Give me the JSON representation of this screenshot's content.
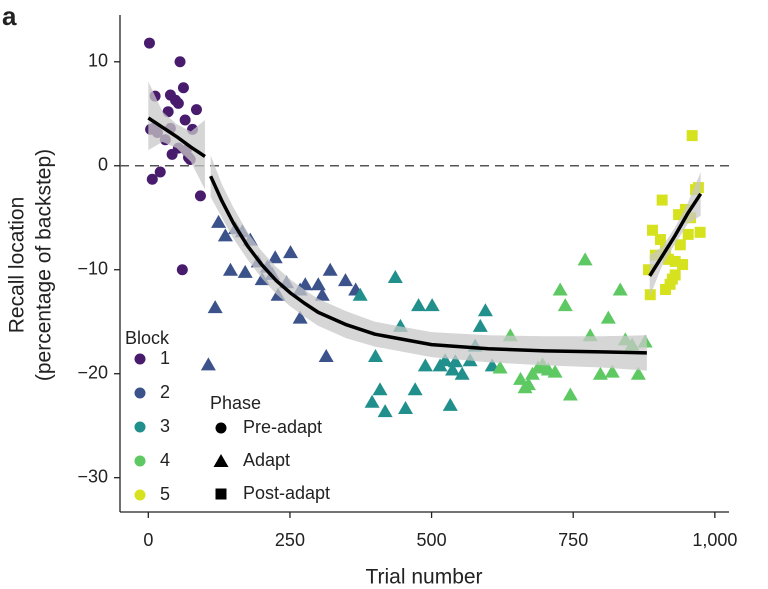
{
  "chart_data": {
    "type": "scatter",
    "panel_label": "a",
    "x_label": "Trial number",
    "y_label": [
      "Recall location",
      "(percentage of backstep)"
    ],
    "xlim": [
      -50,
      1025
    ],
    "ylim": [
      -33.3,
      14.5
    ],
    "xticks": [
      0,
      250,
      500,
      750,
      {
        "value": 1000,
        "label": "1,000"
      }
    ],
    "yticks": [
      10,
      0,
      {
        "value": -10,
        "label": "−10"
      },
      {
        "value": -20,
        "label": "−20"
      },
      {
        "value": -30,
        "label": "−30"
      }
    ],
    "reference_line": {
      "y": 0,
      "style": "dashed"
    },
    "legend_title": "Block",
    "series": [
      {
        "name": "1",
        "color": "#481b6d",
        "marker": "circle",
        "x": [
          2,
          4,
          12,
          16,
          12,
          39,
          62,
          56,
          7,
          21,
          35,
          48,
          53,
          65,
          71,
          39,
          53,
          78,
          85,
          92,
          60,
          74,
          42,
          30,
          67
        ],
        "values": [
          11.8,
          3.5,
          3.7,
          3.2,
          6.7,
          6.8,
          7.5,
          10.0,
          -1.3,
          -0.6,
          5.2,
          6.3,
          6.0,
          4.4,
          0.8,
          3.6,
          1.7,
          3.5,
          5.4,
          -2.9,
          -10.0,
          0.6,
          1.1,
          2.5,
          1.5
        ]
      },
      {
        "name": "2",
        "color": "#3b528b",
        "marker": "triangle",
        "x": [
          124,
          136,
          154,
          166,
          145,
          180,
          194,
          201,
          210,
          219,
          224,
          244,
          251,
          268,
          277,
          300,
          307,
          321,
          348,
          366,
          314,
          229,
          268,
          118,
          106,
          171
        ],
        "values": [
          -5.4,
          -6.7,
          -6.0,
          -6.3,
          -10.0,
          -7.1,
          -9.2,
          -10.9,
          -9.7,
          -10.4,
          -8.8,
          -11.2,
          -8.3,
          -11.9,
          -11.4,
          -11.4,
          -12.4,
          -10.0,
          -11.0,
          -11.9,
          -18.3,
          -12.4,
          -14.6,
          -13.6,
          -19.1,
          -10.2
        ]
      },
      {
        "name": "3",
        "color": "#21908c",
        "marker": "triangle",
        "x": [
          374,
          401,
          395,
          409,
          418,
          436,
          454,
          471,
          477,
          489,
          501,
          515,
          524,
          533,
          537,
          554,
          568,
          577,
          586,
          595,
          607,
          542,
          445
        ],
        "values": [
          -12.4,
          -18.3,
          -22.7,
          -21.5,
          -23.6,
          -10.7,
          -23.3,
          -21.5,
          -13.4,
          -19.2,
          -13.4,
          -19.2,
          -18.7,
          -23.0,
          -19.6,
          -20.0,
          -18.7,
          -17.3,
          -15.4,
          -13.9,
          -19.2,
          -18.8,
          -15.4
        ]
      },
      {
        "name": "4",
        "color": "#5ec962",
        "marker": "triangle",
        "x": [
          639,
          657,
          665,
          678,
          688,
          696,
          706,
          727,
          736,
          745,
          771,
          780,
          798,
          812,
          819,
          833,
          842,
          854,
          865,
          877,
          621,
          718,
          671
        ],
        "values": [
          -16.3,
          -20.5,
          -21.3,
          -20.0,
          -19.4,
          -19.1,
          -19.6,
          -11.9,
          -13.4,
          -22.0,
          -9.0,
          -16.3,
          -20.0,
          -14.6,
          -19.8,
          -11.9,
          -16.7,
          -17.2,
          -20.0,
          -16.9,
          -19.4,
          -19.8,
          -21.0
        ]
      },
      {
        "name": "5",
        "color": "#d6e21e",
        "marker": "square",
        "x": [
          960,
          883,
          890,
          904,
          913,
          918,
          925,
          930,
          939,
          953,
          957,
          974,
          886,
          913,
          921,
          930,
          943,
          948,
          966,
          971,
          907,
          936,
          895
        ],
        "values": [
          2.9,
          -10.0,
          -6.2,
          -7.1,
          -8.1,
          -9.0,
          -10.9,
          -9.2,
          -7.6,
          -6.6,
          -5.0,
          -6.4,
          -12.4,
          -11.9,
          -11.4,
          -10.5,
          -9.5,
          -4.2,
          -2.3,
          -2.1,
          -3.3,
          -4.7,
          -8.6
        ]
      }
    ],
    "fits": [
      {
        "color": "#000000",
        "band_color": "#c8c8c8",
        "x": [
          0,
          25,
          50,
          75,
          100
        ],
        "values": [
          4.6,
          3.7,
          2.8,
          1.8,
          0.9
        ],
        "lower": [
          1.5,
          2.3,
          1.7,
          0.4,
          -2.3
        ],
        "upper": [
          8.1,
          5.2,
          4.0,
          3.3,
          4.4
        ]
      },
      {
        "color": "#000000",
        "band_color": "#c8c8c8",
        "x": [
          110,
          130,
          150,
          175,
          200,
          225,
          250,
          275,
          300,
          350,
          400,
          500,
          600,
          700,
          800,
          880
        ],
        "values": [
          -1.0,
          -3.4,
          -5.5,
          -7.7,
          -9.5,
          -11.0,
          -12.2,
          -13.2,
          -14.1,
          -15.3,
          -16.2,
          -17.2,
          -17.6,
          -17.8,
          -17.9,
          -18.0
        ],
        "lower": [
          -3.0,
          -5.0,
          -7.0,
          -9.0,
          -10.8,
          -12.3,
          -13.5,
          -14.5,
          -15.4,
          -16.6,
          -17.4,
          -18.4,
          -18.9,
          -19.2,
          -19.4,
          -19.7
        ],
        "upper": [
          1.0,
          -1.8,
          -4.0,
          -6.4,
          -8.2,
          -9.7,
          -10.9,
          -11.9,
          -12.8,
          -14.0,
          -15.0,
          -16.0,
          -16.3,
          -16.4,
          -16.4,
          -16.3
        ]
      },
      {
        "color": "#000000",
        "band_color": "#c8c8c8",
        "x": [
          885,
          907,
          930,
          952,
          975
        ],
        "values": [
          -10.6,
          -8.7,
          -6.7,
          -4.6,
          -2.7
        ],
        "lower": [
          -12.6,
          -9.6,
          -7.5,
          -5.6,
          -4.8
        ],
        "upper": [
          -8.6,
          -7.8,
          -5.9,
          -3.6,
          -0.6
        ]
      }
    ],
    "phase_legend": {
      "title": "Phase",
      "color": "#000000",
      "entries": [
        {
          "label": "Pre-adapt",
          "marker": "circle"
        },
        {
          "label": "Adapt",
          "marker": "triangle"
        },
        {
          "label": "Post-adapt",
          "marker": "square"
        }
      ]
    }
  }
}
